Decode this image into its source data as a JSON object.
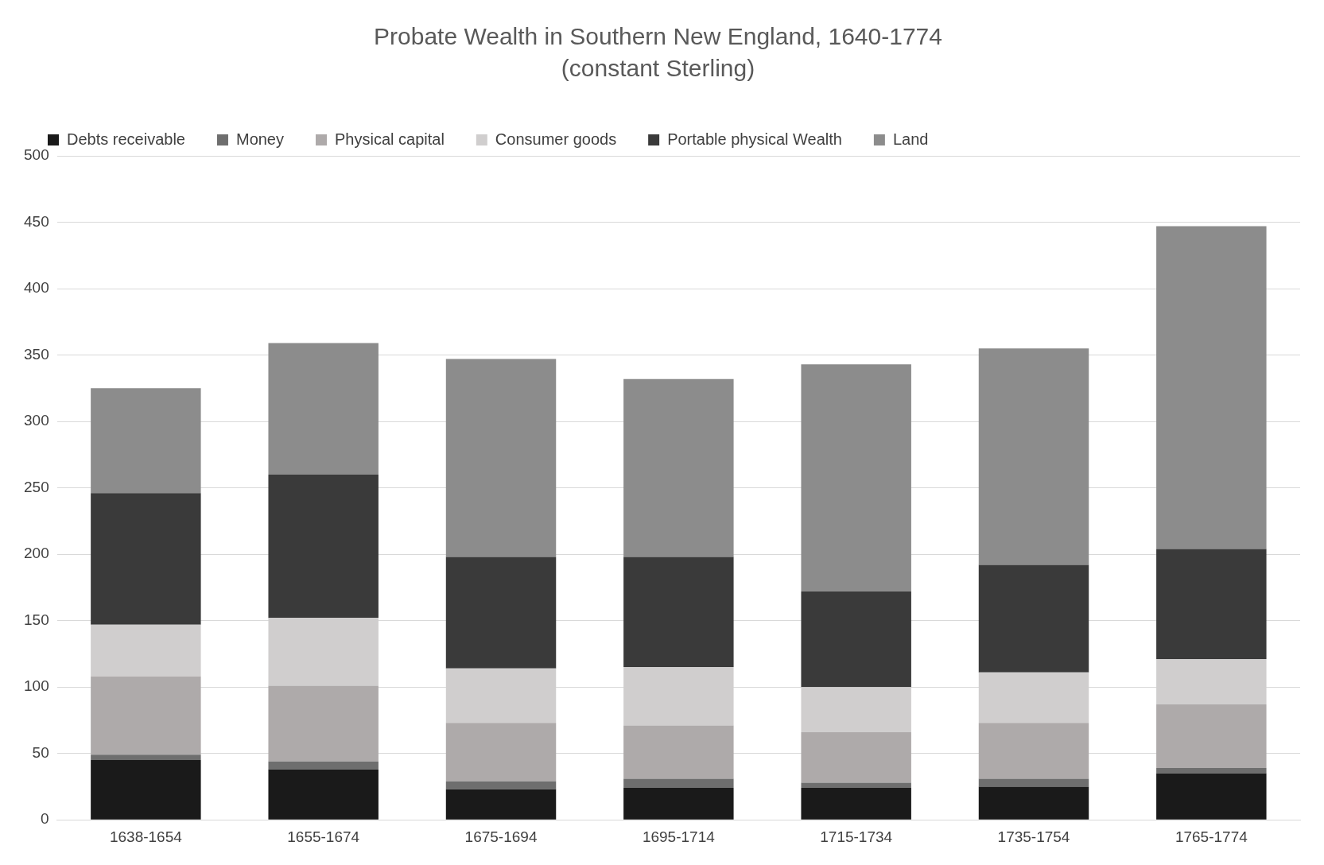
{
  "chart_data": {
    "type": "bar",
    "title": "Probate Wealth in Southern New England, 1640-1774",
    "subtitle": "(constant Sterling)",
    "stacked": true,
    "categories": [
      "1638-1654",
      "1655-1674",
      "1675-1694",
      "1695-1714",
      "1715-1734",
      "1735-1754",
      "1765-1774"
    ],
    "series": [
      {
        "name": "Debts receivable",
        "color": "#1a1a1a",
        "values": [
          45,
          38,
          23,
          24,
          24,
          25,
          35
        ]
      },
      {
        "name": "Money",
        "color": "#6e6e6e",
        "values": [
          4,
          6,
          6,
          7,
          4,
          6,
          4
        ]
      },
      {
        "name": "Physical capital",
        "color": "#aeaaaa",
        "values": [
          59,
          57,
          44,
          40,
          38,
          42,
          48
        ]
      },
      {
        "name": "Consumer goods",
        "color": "#d0cece",
        "values": [
          39,
          51,
          41,
          44,
          34,
          38,
          34
        ]
      },
      {
        "name": "Portable physical Wealth",
        "color": "#3a3a3a",
        "values": [
          99,
          108,
          84,
          83,
          72,
          81,
          83
        ]
      },
      {
        "name": "Land",
        "color": "#8c8c8c",
        "values": [
          79,
          99,
          149,
          134,
          171,
          163,
          243
        ]
      }
    ],
    "ylim": [
      0,
      500
    ],
    "yticks": [
      0,
      50,
      100,
      150,
      200,
      250,
      300,
      350,
      400,
      450,
      500
    ],
    "grid": "y",
    "legend": "top left"
  }
}
